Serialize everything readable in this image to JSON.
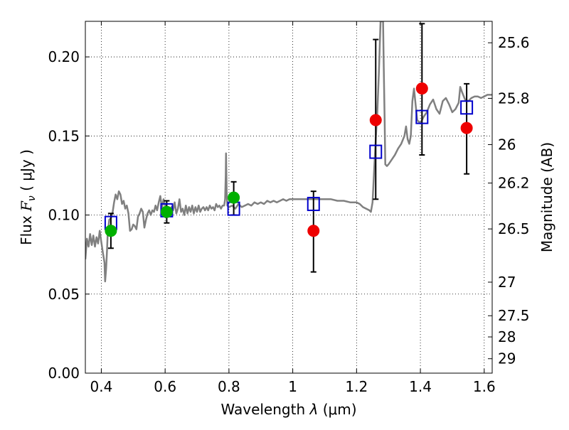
{
  "chart_data": {
    "type": "scatter",
    "xlabel_text": "Wavelength",
    "xlabel_symbol": "λ",
    "xlabel_unit": "(μm)",
    "ylabel_text": "Flux",
    "ylabel_symbol": "F",
    "ylabel_subscript": "ν",
    "ylabel_unit": "( μJy )",
    "y2label": "Magnitude (AB)",
    "xlim": [
      0.35,
      1.625
    ],
    "ylim": [
      0.0,
      0.2225
    ],
    "grid": true,
    "x_ticks": [
      0.4,
      0.6,
      0.8,
      1.0,
      1.2,
      1.4,
      1.6
    ],
    "x_tick_labels": [
      "0.4",
      "0.6",
      "0.8",
      "1",
      "1.2",
      "1.4",
      "1.6"
    ],
    "y_ticks": [
      0.0,
      0.05,
      0.1,
      0.15,
      0.2
    ],
    "y_tick_labels": [
      "0.00",
      "0.05",
      "0.10",
      "0.15",
      "0.20"
    ],
    "y2_ticks": [
      {
        "label": "25.6",
        "mag": 25.6
      },
      {
        "label": "25.8",
        "mag": 25.8
      },
      {
        "label": "26",
        "mag": 26.0
      },
      {
        "label": "26.2",
        "mag": 26.2
      },
      {
        "label": "26.5",
        "mag": 26.5
      },
      {
        "label": "27",
        "mag": 27.0
      },
      {
        "label": "27.5",
        "mag": 27.5
      },
      {
        "label": "28",
        "mag": 28.0
      },
      {
        "label": "29",
        "mag": 29.0
      }
    ],
    "series": [
      {
        "kind": "line",
        "color": "#808080",
        "points": [
          [
            0.35,
            0.072
          ],
          [
            0.355,
            0.085
          ],
          [
            0.36,
            0.08
          ],
          [
            0.365,
            0.088
          ],
          [
            0.37,
            0.081
          ],
          [
            0.375,
            0.087
          ],
          [
            0.38,
            0.08
          ],
          [
            0.385,
            0.086
          ],
          [
            0.39,
            0.082
          ],
          [
            0.395,
            0.09
          ],
          [
            0.4,
            0.083
          ],
          [
            0.405,
            0.076
          ],
          [
            0.41,
            0.07
          ],
          [
            0.412,
            0.058
          ],
          [
            0.415,
            0.066
          ],
          [
            0.418,
            0.078
          ],
          [
            0.42,
            0.088
          ],
          [
            0.425,
            0.097
          ],
          [
            0.43,
            0.098
          ],
          [
            0.435,
            0.101
          ],
          [
            0.44,
            0.108
          ],
          [
            0.445,
            0.113
          ],
          [
            0.45,
            0.11
          ],
          [
            0.455,
            0.115
          ],
          [
            0.46,
            0.113
          ],
          [
            0.465,
            0.107
          ],
          [
            0.47,
            0.109
          ],
          [
            0.475,
            0.104
          ],
          [
            0.48,
            0.106
          ],
          [
            0.485,
            0.101
          ],
          [
            0.49,
            0.09
          ],
          [
            0.495,
            0.091
          ],
          [
            0.5,
            0.094
          ],
          [
            0.505,
            0.093
          ],
          [
            0.51,
            0.091
          ],
          [
            0.515,
            0.099
          ],
          [
            0.52,
            0.101
          ],
          [
            0.525,
            0.104
          ],
          [
            0.53,
            0.102
          ],
          [
            0.535,
            0.092
          ],
          [
            0.54,
            0.097
          ],
          [
            0.545,
            0.101
          ],
          [
            0.55,
            0.103
          ],
          [
            0.555,
            0.1
          ],
          [
            0.56,
            0.103
          ],
          [
            0.565,
            0.102
          ],
          [
            0.57,
            0.106
          ],
          [
            0.575,
            0.103
          ],
          [
            0.58,
            0.108
          ],
          [
            0.585,
            0.112
          ],
          [
            0.59,
            0.104
          ],
          [
            0.595,
            0.11
          ],
          [
            0.6,
            0.106
          ],
          [
            0.605,
            0.102
          ],
          [
            0.61,
            0.104
          ],
          [
            0.615,
            0.1
          ],
          [
            0.62,
            0.105
          ],
          [
            0.625,
            0.103
          ],
          [
            0.63,
            0.108
          ],
          [
            0.635,
            0.101
          ],
          [
            0.64,
            0.104
          ],
          [
            0.645,
            0.11
          ],
          [
            0.65,
            0.102
          ],
          [
            0.655,
            0.104
          ],
          [
            0.66,
            0.1
          ],
          [
            0.665,
            0.106
          ],
          [
            0.67,
            0.101
          ],
          [
            0.675,
            0.105
          ],
          [
            0.68,
            0.102
          ],
          [
            0.685,
            0.106
          ],
          [
            0.69,
            0.101
          ],
          [
            0.695,
            0.105
          ],
          [
            0.7,
            0.102
          ],
          [
            0.705,
            0.106
          ],
          [
            0.71,
            0.102
          ],
          [
            0.715,
            0.104
          ],
          [
            0.72,
            0.105
          ],
          [
            0.725,
            0.103
          ],
          [
            0.73,
            0.105
          ],
          [
            0.735,
            0.103
          ],
          [
            0.74,
            0.106
          ],
          [
            0.745,
            0.104
          ],
          [
            0.75,
            0.105
          ],
          [
            0.755,
            0.103
          ],
          [
            0.76,
            0.107
          ],
          [
            0.765,
            0.105
          ],
          [
            0.77,
            0.106
          ],
          [
            0.775,
            0.104
          ],
          [
            0.78,
            0.106
          ],
          [
            0.785,
            0.106
          ],
          [
            0.788,
            0.11
          ],
          [
            0.79,
            0.125
          ],
          [
            0.791,
            0.139
          ],
          [
            0.793,
            0.115
          ],
          [
            0.795,
            0.106
          ],
          [
            0.8,
            0.105
          ],
          [
            0.81,
            0.106
          ],
          [
            0.82,
            0.104
          ],
          [
            0.83,
            0.107
          ],
          [
            0.84,
            0.105
          ],
          [
            0.85,
            0.106
          ],
          [
            0.86,
            0.107
          ],
          [
            0.87,
            0.106
          ],
          [
            0.88,
            0.108
          ],
          [
            0.89,
            0.107
          ],
          [
            0.9,
            0.108
          ],
          [
            0.91,
            0.107
          ],
          [
            0.92,
            0.109
          ],
          [
            0.93,
            0.108
          ],
          [
            0.94,
            0.109
          ],
          [
            0.95,
            0.108
          ],
          [
            0.96,
            0.109
          ],
          [
            0.97,
            0.11
          ],
          [
            0.98,
            0.109
          ],
          [
            0.99,
            0.11
          ],
          [
            1.0,
            0.11
          ],
          [
            1.02,
            0.11
          ],
          [
            1.04,
            0.11
          ],
          [
            1.06,
            0.11
          ],
          [
            1.08,
            0.11
          ],
          [
            1.1,
            0.11
          ],
          [
            1.12,
            0.11
          ],
          [
            1.14,
            0.109
          ],
          [
            1.16,
            0.109
          ],
          [
            1.18,
            0.108
          ],
          [
            1.2,
            0.108
          ],
          [
            1.21,
            0.107
          ],
          [
            1.22,
            0.105
          ],
          [
            1.23,
            0.104
          ],
          [
            1.24,
            0.103
          ],
          [
            1.245,
            0.102
          ],
          [
            1.25,
            0.108
          ],
          [
            1.255,
            0.128
          ],
          [
            1.26,
            0.148
          ],
          [
            1.265,
            0.165
          ],
          [
            1.27,
            0.19
          ],
          [
            1.275,
            0.222
          ],
          [
            1.277,
            0.2225
          ],
          [
            1.28,
            0.2225
          ],
          [
            1.283,
            0.2225
          ],
          [
            1.285,
            0.195
          ],
          [
            1.288,
            0.16
          ],
          [
            1.29,
            0.132
          ],
          [
            1.295,
            0.131
          ],
          [
            1.3,
            0.132
          ],
          [
            1.31,
            0.135
          ],
          [
            1.32,
            0.138
          ],
          [
            1.33,
            0.142
          ],
          [
            1.34,
            0.145
          ],
          [
            1.35,
            0.15
          ],
          [
            1.355,
            0.156
          ],
          [
            1.36,
            0.148
          ],
          [
            1.365,
            0.145
          ],
          [
            1.37,
            0.15
          ],
          [
            1.375,
            0.172
          ],
          [
            1.38,
            0.18
          ],
          [
            1.385,
            0.17
          ],
          [
            1.39,
            0.16
          ],
          [
            1.4,
            0.158
          ],
          [
            1.41,
            0.162
          ],
          [
            1.42,
            0.165
          ],
          [
            1.43,
            0.17
          ],
          [
            1.44,
            0.173
          ],
          [
            1.45,
            0.167
          ],
          [
            1.46,
            0.164
          ],
          [
            1.47,
            0.172
          ],
          [
            1.48,
            0.174
          ],
          [
            1.49,
            0.17
          ],
          [
            1.5,
            0.165
          ],
          [
            1.51,
            0.167
          ],
          [
            1.52,
            0.171
          ],
          [
            1.525,
            0.181
          ],
          [
            1.53,
            0.178
          ],
          [
            1.54,
            0.173
          ],
          [
            1.55,
            0.172
          ],
          [
            1.56,
            0.174
          ],
          [
            1.57,
            0.175
          ],
          [
            1.58,
            0.175
          ],
          [
            1.59,
            0.174
          ],
          [
            1.6,
            0.175
          ],
          [
            1.61,
            0.176
          ],
          [
            1.62,
            0.176
          ],
          [
            1.625,
            0.176
          ]
        ]
      },
      {
        "kind": "open-square",
        "color": "#0000cc",
        "points": [
          [
            0.43,
            0.095
          ],
          [
            0.605,
            0.103
          ],
          [
            0.815,
            0.104
          ],
          [
            1.065,
            0.107
          ],
          [
            1.26,
            0.14
          ],
          [
            1.405,
            0.162
          ],
          [
            1.545,
            0.168
          ]
        ]
      },
      {
        "kind": "filled-circle",
        "color": "#00b000",
        "points": [
          {
            "x": 0.43,
            "y": 0.09,
            "err_low": 0.079,
            "err_high": 0.101
          },
          {
            "x": 0.605,
            "y": 0.102,
            "err_low": 0.095,
            "err_high": 0.109
          },
          {
            "x": 0.815,
            "y": 0.111,
            "err_low": 0.1,
            "err_high": 0.121
          }
        ]
      },
      {
        "kind": "filled-circle",
        "color": "#ee0000",
        "points": [
          {
            "x": 1.065,
            "y": 0.09,
            "err_low": 0.064,
            "err_high": 0.115
          },
          {
            "x": 1.26,
            "y": 0.16,
            "err_low": 0.11,
            "err_high": 0.211
          },
          {
            "x": 1.405,
            "y": 0.18,
            "err_low": 0.138,
            "err_high": 0.221
          },
          {
            "x": 1.545,
            "y": 0.155,
            "err_low": 0.126,
            "err_high": 0.183
          }
        ]
      }
    ]
  }
}
